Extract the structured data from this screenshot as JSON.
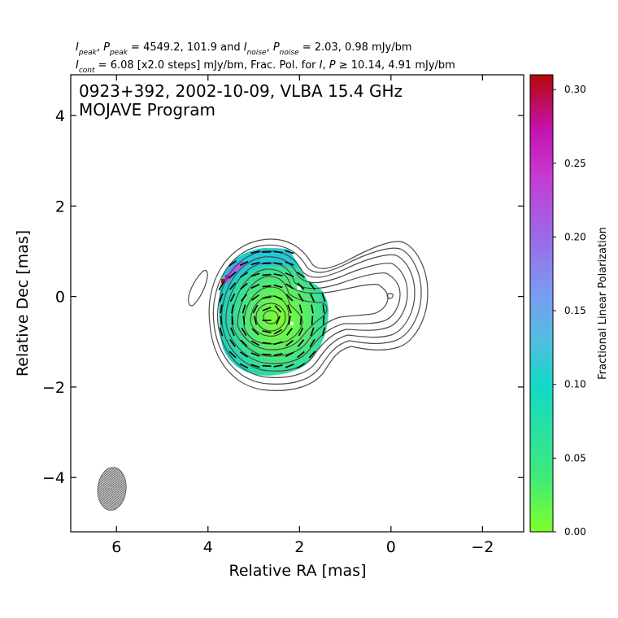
{
  "header": {
    "line1": "I_peak, P_peak = 4549.2, 101.9 and I_noise, P_noise = 2.03, 0.98 mJy/bm",
    "line2": "I_cont = 6.08 [x2.0 steps] mJy/bm, Frac. Pol. for I, P ≥ 10.14, 4.91 mJy/bm"
  },
  "chart_data": {
    "type": "heatmap",
    "title": "0923+392, 2002-10-09, VLBA 15.4 GHz",
    "subtitle": "MOJAVE Program",
    "xlabel": "Relative RA [mas]",
    "ylabel": "Relative Dec [mas]",
    "xlim": [
      7.0,
      -2.9
    ],
    "ylim": [
      -5.2,
      4.9
    ],
    "xticks": [
      6,
      4,
      2,
      0,
      -2
    ],
    "xtick_labels": [
      "6",
      "4",
      "2",
      "0",
      "−2"
    ],
    "yticks": [
      4,
      2,
      0,
      -2,
      -4
    ],
    "ytick_labels": [
      "4",
      "2",
      "0",
      "−2",
      "−4"
    ],
    "colorbar": {
      "label": "Fractional Linear Polarization",
      "range": [
        0.0,
        0.31
      ],
      "ticks": [
        0.0,
        0.05,
        0.1,
        0.15,
        0.2,
        0.25,
        0.3
      ],
      "tick_labels": [
        "0.00",
        "0.05",
        "0.10",
        "0.15",
        "0.20",
        "0.25",
        "0.30"
      ],
      "colormap": [
        "#7fff2a",
        "#3fea7a",
        "#12d9c6",
        "#52bde0",
        "#7a9cf2",
        "#9a6be8",
        "#c63ad2",
        "#c412b0",
        "#b40808"
      ]
    },
    "beam": {
      "center": [
        6.1,
        -4.25
      ],
      "major_mas": 0.95,
      "minor_mas": 0.62,
      "pa_deg": 5
    },
    "polarization_center": [
      2.65,
      -0.45
    ],
    "contour_color": "#4a4a4a",
    "vector_color": "#000000"
  }
}
